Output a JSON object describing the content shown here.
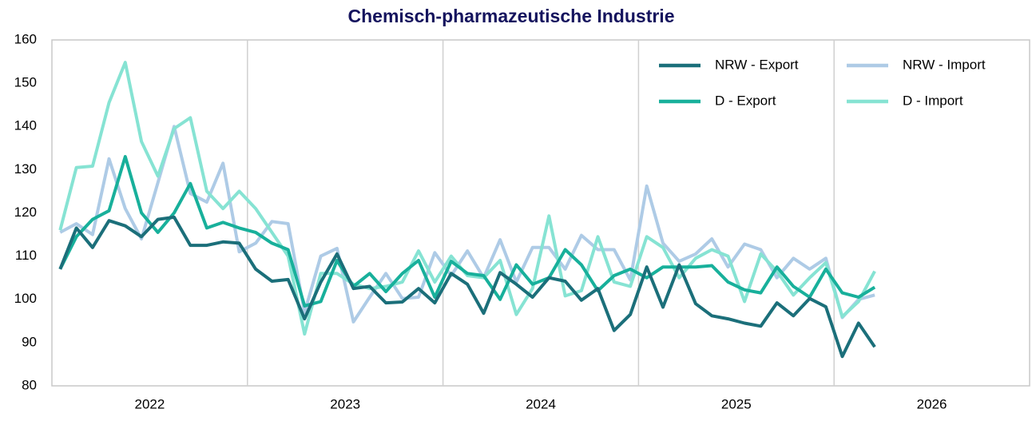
{
  "chart_data": {
    "type": "line",
    "title": "Chemisch-pharmazeutische Industrie",
    "x": [
      2022.042,
      2022.125,
      2022.208,
      2022.292,
      2022.375,
      2022.458,
      2022.542,
      2022.625,
      2022.708,
      2022.792,
      2022.875,
      2022.958,
      2023.042,
      2023.125,
      2023.208,
      2023.292,
      2023.375,
      2023.458,
      2023.542,
      2023.625,
      2023.708,
      2023.792,
      2023.875,
      2023.958,
      2024.042,
      2024.125,
      2024.208,
      2024.292,
      2024.375,
      2024.458,
      2024.542,
      2024.625,
      2024.708,
      2024.792,
      2024.875,
      2024.958,
      2025.042,
      2025.125,
      2025.208,
      2025.292,
      2025.375,
      2025.458,
      2025.542,
      2025.625,
      2025.708,
      2025.792,
      2025.875,
      2025.958,
      2026.042,
      2026.125,
      2026.208
    ],
    "xlim": [
      2022,
      2027
    ],
    "xticks": [
      {
        "value": 2022.5,
        "label": "2022"
      },
      {
        "value": 2023.5,
        "label": "2023"
      },
      {
        "value": 2024.5,
        "label": "2024"
      },
      {
        "value": 2025.5,
        "label": "2025"
      },
      {
        "value": 2026.5,
        "label": "2026"
      }
    ],
    "xgrid": [
      2023,
      2024,
      2025,
      2026
    ],
    "ylim": [
      80,
      160
    ],
    "yticks": [
      80,
      90,
      100,
      110,
      120,
      130,
      140,
      150,
      160
    ],
    "series": [
      {
        "name": "NRW - Export",
        "color": "#1b6f7a",
        "values": [
          107,
          116.5,
          112,
          118.2,
          117,
          114.5,
          118.5,
          119,
          112.5,
          112.5,
          113.3,
          113,
          107,
          104.2,
          104.6,
          95.5,
          104,
          110.5,
          102.5,
          103,
          99.2,
          99.4,
          102.5,
          99.2,
          106,
          103.5,
          96.8,
          106.2,
          103.5,
          100.5,
          105,
          104.2,
          99.8,
          102.5,
          92.8,
          96.5,
          107.5,
          98.2,
          108,
          99,
          96.2,
          95.5,
          94.5,
          93.8,
          99.2,
          96.2,
          100.2,
          98.3,
          86.8,
          94.5,
          89
        ]
      },
      {
        "name": "NRW - Import",
        "color": "#aecbe6",
        "values": [
          115.5,
          117.5,
          115,
          132.5,
          121,
          114,
          127,
          140,
          124.5,
          122.5,
          131.5,
          111,
          113,
          118,
          117.5,
          97,
          110,
          111.8,
          94.8,
          100.5,
          106,
          100.2,
          100.5,
          110.8,
          105.5,
          111.2,
          105,
          113.8,
          104,
          112,
          112,
          107,
          114.8,
          111.5,
          111.5,
          104.5,
          126.2,
          113,
          108.8,
          110.5,
          114,
          107.5,
          112.8,
          111.5,
          105,
          109.5,
          107,
          109.5,
          95.8,
          100,
          101
        ]
      },
      {
        "name": "D - Export",
        "color": "#18b09b",
        "values": [
          107,
          114.5,
          118.5,
          120.5,
          133,
          120,
          115.5,
          120,
          126.8,
          116.5,
          117.8,
          116.5,
          115.5,
          113,
          111.5,
          98.5,
          99.5,
          109,
          103,
          106,
          101.8,
          106,
          109,
          100.5,
          108.8,
          106,
          105.5,
          100,
          108,
          103.5,
          105,
          111.5,
          108,
          102,
          105.5,
          107,
          105,
          107.5,
          107.5,
          107.5,
          107.8,
          104,
          102.2,
          101.5,
          107.5,
          103,
          100.5,
          107,
          101.5,
          100.5,
          102.8
        ]
      },
      {
        "name": "D - Import",
        "color": "#86e3d3",
        "values": [
          116,
          130.5,
          130.8,
          145.5,
          154.8,
          136.5,
          128.5,
          139.5,
          142,
          125,
          121,
          125,
          121,
          115.5,
          110,
          92,
          106,
          106,
          103.5,
          102.5,
          103,
          104,
          111.2,
          104,
          110,
          105.5,
          105,
          109,
          96.5,
          102.5,
          119.3,
          100.8,
          102,
          114.5,
          104,
          103,
          114.5,
          112,
          105,
          109.5,
          111.5,
          110,
          99.5,
          110.5,
          106.5,
          101,
          105,
          108.5,
          96,
          99.5,
          106.5
        ]
      }
    ]
  }
}
